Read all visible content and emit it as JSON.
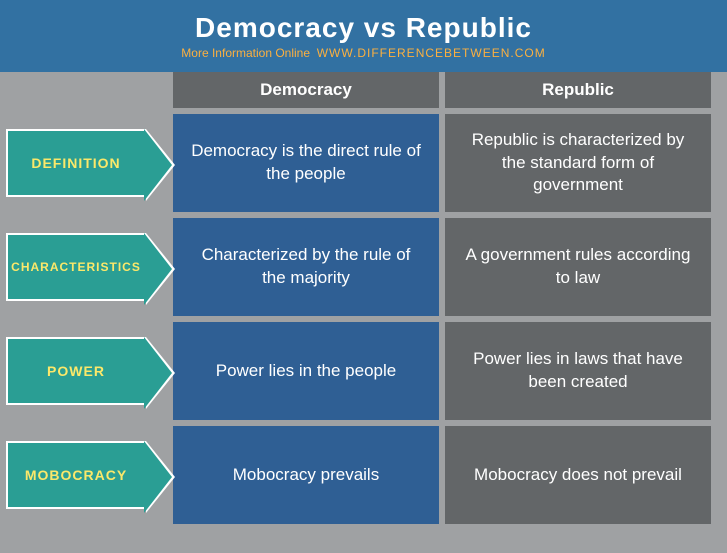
{
  "header": {
    "title": "Democracy vs Republic",
    "more_info": "More Information Online",
    "url": "WWW.DIFFERENCEBETWEEN.COM"
  },
  "columns": {
    "democracy": "Democracy",
    "republic": "Republic"
  },
  "rows": [
    {
      "label": "DEFINITION",
      "democracy": "Democracy is the direct rule of the people",
      "republic": "Republic is characterized by the standard form of government"
    },
    {
      "label": "CHARACTERISTICS",
      "democracy": "Characterized by the rule of the majority",
      "republic": "A government rules according to law"
    },
    {
      "label": "POWER",
      "democracy": "Power lies in the people",
      "republic": "Power lies in laws that have been created"
    },
    {
      "label": "MOBOCRACY",
      "democracy": "Mobocracy prevails",
      "republic": "Mobocracy does not prevail"
    }
  ],
  "colors": {
    "page_bg": "#9fa1a3",
    "header_bg": "#3271a2",
    "title_color": "#ffffff",
    "subhead_color": "#fbb040",
    "label_bg": "#2a9e94",
    "label_text": "#fbe86a",
    "democracy_cell_bg": "#2f5f94",
    "republic_cell_bg": "#636668",
    "cell_text": "#ffffff"
  },
  "typography": {
    "title_fontsize": 28,
    "colhead_fontsize": 17,
    "label_fontsize": 14,
    "cell_fontsize": 17,
    "subhead_fontsize": 12
  }
}
